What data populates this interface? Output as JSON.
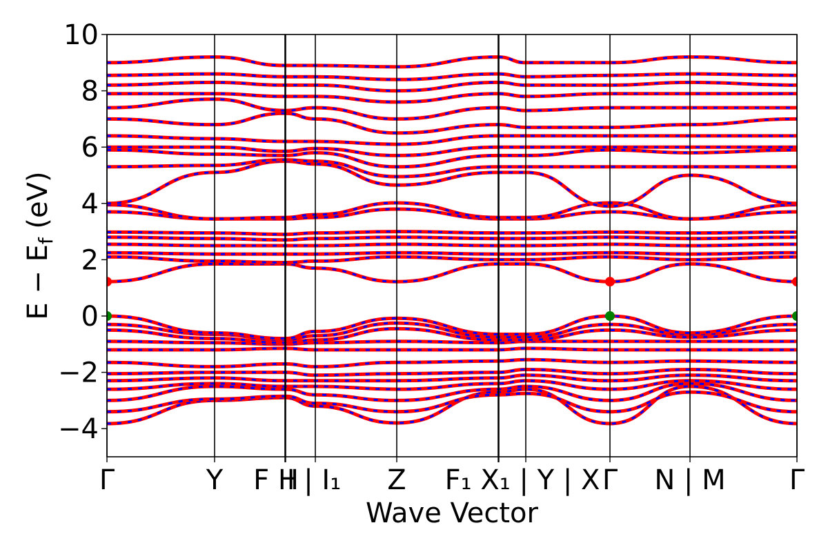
{
  "chart_data": {
    "type": "line",
    "title": "",
    "xlabel": "Wave Vector",
    "ylabel": "E − E_f (eV)",
    "ylabel_parts": {
      "main": "E − E",
      "sub": "f",
      "unit": " (eV)"
    },
    "ylim": [
      -5,
      10
    ],
    "yticks": [
      -4,
      -2,
      0,
      2,
      4,
      6,
      8,
      10
    ],
    "ytick_labels": [
      "−4",
      "−2",
      "0",
      "2",
      "4",
      "6",
      "8",
      "10"
    ],
    "xlim": [
      0,
      1
    ],
    "high_symmetry_points": [
      {
        "x": 0.0,
        "label": "Γ"
      },
      {
        "x": 0.156,
        "label": "Y"
      },
      {
        "x": 0.258,
        "label": "F"
      },
      {
        "x": 0.259,
        "label": "H"
      },
      {
        "x": 0.302,
        "label": "I | I₁"
      },
      {
        "x": 0.42,
        "label": "Z"
      },
      {
        "x": 0.567,
        "label": "F₁"
      },
      {
        "x": 0.568,
        "label": "X₁"
      },
      {
        "x": 0.607,
        "label": "Y | X"
      },
      {
        "x": 0.729,
        "label": "Γ"
      },
      {
        "x": 0.845,
        "label": "N | M"
      },
      {
        "x": 1.0,
        "label": "Γ"
      }
    ],
    "tick_label_text": [
      "Γ",
      "Y",
      "F H",
      "I | I₁",
      "Z",
      "F₁ X₁ | Y | X",
      "Γ",
      "N | M",
      "Γ"
    ],
    "series": [
      {
        "color": "#ff0000",
        "style": "solid"
      },
      {
        "color": "#0000ff",
        "style": "dashed"
      }
    ],
    "bands": [
      [
        [
          0,
          -3.82
        ],
        [
          0.156,
          -3.0
        ],
        [
          0.258,
          -2.9
        ],
        [
          0.302,
          -3.2
        ],
        [
          0.42,
          -3.8
        ],
        [
          0.567,
          -2.7
        ],
        [
          0.607,
          -2.6
        ],
        [
          0.729,
          -3.82
        ],
        [
          0.845,
          -2.5
        ],
        [
          1.0,
          -3.82
        ]
      ],
      [
        [
          0,
          -3.4
        ],
        [
          0.156,
          -2.95
        ],
        [
          0.258,
          -2.85
        ],
        [
          0.302,
          -3.1
        ],
        [
          0.42,
          -3.4
        ],
        [
          0.567,
          -2.8
        ],
        [
          0.607,
          -2.75
        ],
        [
          0.729,
          -3.4
        ],
        [
          0.845,
          -2.7
        ],
        [
          1.0,
          -3.4
        ]
      ],
      [
        [
          0,
          -3.0
        ],
        [
          0.156,
          -2.5
        ],
        [
          0.258,
          -2.6
        ],
        [
          0.302,
          -2.8
        ],
        [
          0.42,
          -3.0
        ],
        [
          0.567,
          -2.6
        ],
        [
          0.607,
          -2.5
        ],
        [
          0.729,
          -3.0
        ],
        [
          0.845,
          -2.4
        ],
        [
          1.0,
          -3.0
        ]
      ],
      [
        [
          0,
          -2.6
        ],
        [
          0.156,
          -2.4
        ],
        [
          0.258,
          -2.5
        ],
        [
          0.302,
          -2.5
        ],
        [
          0.42,
          -2.6
        ],
        [
          0.567,
          -2.4
        ],
        [
          0.607,
          -2.3
        ],
        [
          0.729,
          -2.6
        ],
        [
          0.845,
          -2.3
        ],
        [
          1.0,
          -2.6
        ]
      ],
      [
        [
          0,
          -2.3
        ],
        [
          0.156,
          -2.2
        ],
        [
          0.258,
          -2.3
        ],
        [
          0.302,
          -2.3
        ],
        [
          0.42,
          -2.3
        ],
        [
          0.567,
          -2.2
        ],
        [
          0.607,
          -2.1
        ],
        [
          0.729,
          -2.3
        ],
        [
          0.845,
          -2.1
        ],
        [
          1.0,
          -2.3
        ]
      ],
      [
        [
          0,
          -2.05
        ],
        [
          0.156,
          -2.0
        ],
        [
          0.258,
          -2.0
        ],
        [
          0.302,
          -2.1
        ],
        [
          0.42,
          -2.05
        ],
        [
          0.567,
          -2.0
        ],
        [
          0.607,
          -1.9
        ],
        [
          0.729,
          -2.05
        ],
        [
          0.845,
          -1.9
        ],
        [
          1.0,
          -2.05
        ]
      ],
      [
        [
          0,
          -1.65
        ],
        [
          0.156,
          -1.8
        ],
        [
          0.258,
          -1.7
        ],
        [
          0.302,
          -1.8
        ],
        [
          0.42,
          -1.65
        ],
        [
          0.567,
          -1.6
        ],
        [
          0.607,
          -1.55
        ],
        [
          0.729,
          -1.65
        ],
        [
          0.845,
          -1.6
        ],
        [
          1.0,
          -1.65
        ]
      ],
      [
        [
          0,
          -1.2
        ],
        [
          0.156,
          -1.2
        ],
        [
          0.258,
          -1.15
        ],
        [
          0.302,
          -1.2
        ],
        [
          0.42,
          -1.2
        ],
        [
          0.567,
          -1.2
        ],
        [
          0.607,
          -1.15
        ],
        [
          0.729,
          -1.2
        ],
        [
          0.845,
          -1.2
        ],
        [
          1.0,
          -1.2
        ]
      ],
      [
        [
          0,
          -0.9
        ],
        [
          0.156,
          -0.95
        ],
        [
          0.258,
          -1.0
        ],
        [
          0.302,
          -0.95
        ],
        [
          0.42,
          -0.9
        ],
        [
          0.567,
          -0.95
        ],
        [
          0.607,
          -0.9
        ],
        [
          0.729,
          -0.9
        ],
        [
          0.845,
          -0.9
        ],
        [
          1.0,
          -0.9
        ]
      ],
      [
        [
          0,
          -0.5
        ],
        [
          0.156,
          -0.8
        ],
        [
          0.258,
          -0.95
        ],
        [
          0.302,
          -0.85
        ],
        [
          0.42,
          -0.45
        ],
        [
          0.567,
          -0.85
        ],
        [
          0.607,
          -0.85
        ],
        [
          0.729,
          -0.5
        ],
        [
          0.845,
          -0.75
        ],
        [
          1.0,
          -0.5
        ]
      ],
      [
        [
          0,
          -0.3
        ],
        [
          0.156,
          -0.65
        ],
        [
          0.258,
          -0.85
        ],
        [
          0.302,
          -0.7
        ],
        [
          0.42,
          -0.25
        ],
        [
          0.567,
          -0.75
        ],
        [
          0.607,
          -0.75
        ],
        [
          0.729,
          -0.3
        ],
        [
          0.845,
          -0.65
        ],
        [
          1.0,
          -0.3
        ]
      ],
      [
        [
          0,
          0.0
        ],
        [
          0.156,
          -0.6
        ],
        [
          0.258,
          -0.8
        ],
        [
          0.302,
          -0.55
        ],
        [
          0.42,
          -0.08
        ],
        [
          0.567,
          -0.65
        ],
        [
          0.607,
          -0.65
        ],
        [
          0.729,
          0.0
        ],
        [
          0.845,
          -0.6
        ],
        [
          1.0,
          0.0
        ]
      ],
      [
        [
          0,
          1.22
        ],
        [
          0.156,
          1.85
        ],
        [
          0.258,
          1.85
        ],
        [
          0.302,
          1.7
        ],
        [
          0.42,
          1.22
        ],
        [
          0.567,
          1.85
        ],
        [
          0.607,
          1.85
        ],
        [
          0.729,
          1.22
        ],
        [
          0.845,
          1.85
        ],
        [
          1.0,
          1.22
        ]
      ],
      [
        [
          0,
          2.1
        ],
        [
          0.156,
          1.95
        ],
        [
          0.258,
          1.9
        ],
        [
          0.302,
          1.95
        ],
        [
          0.42,
          2.1
        ],
        [
          0.567,
          2.0
        ],
        [
          0.607,
          2.0
        ],
        [
          0.729,
          2.1
        ],
        [
          0.845,
          2.0
        ],
        [
          1.0,
          2.1
        ]
      ],
      [
        [
          0,
          2.25
        ],
        [
          0.156,
          2.2
        ],
        [
          0.258,
          2.2
        ],
        [
          0.302,
          2.2
        ],
        [
          0.42,
          2.25
        ],
        [
          0.567,
          2.2
        ],
        [
          0.607,
          2.2
        ],
        [
          0.729,
          2.25
        ],
        [
          0.845,
          2.2
        ],
        [
          1.0,
          2.25
        ]
      ],
      [
        [
          0,
          2.55
        ],
        [
          0.156,
          2.5
        ],
        [
          0.258,
          2.5
        ],
        [
          0.302,
          2.5
        ],
        [
          0.42,
          2.55
        ],
        [
          0.567,
          2.5
        ],
        [
          0.607,
          2.5
        ],
        [
          0.729,
          2.55
        ],
        [
          0.845,
          2.5
        ],
        [
          1.0,
          2.55
        ]
      ],
      [
        [
          0,
          2.8
        ],
        [
          0.156,
          2.75
        ],
        [
          0.258,
          2.7
        ],
        [
          0.302,
          2.75
        ],
        [
          0.42,
          2.8
        ],
        [
          0.567,
          2.75
        ],
        [
          0.607,
          2.75
        ],
        [
          0.729,
          2.8
        ],
        [
          0.845,
          2.75
        ],
        [
          1.0,
          2.8
        ]
      ],
      [
        [
          0,
          2.98
        ],
        [
          0.156,
          2.95
        ],
        [
          0.258,
          2.9
        ],
        [
          0.302,
          2.95
        ],
        [
          0.42,
          3.0
        ],
        [
          0.567,
          2.95
        ],
        [
          0.607,
          2.95
        ],
        [
          0.729,
          2.98
        ],
        [
          0.845,
          2.95
        ],
        [
          1.0,
          2.98
        ]
      ],
      [
        [
          0,
          3.7
        ],
        [
          0.156,
          3.45
        ],
        [
          0.258,
          3.45
        ],
        [
          0.302,
          3.5
        ],
        [
          0.42,
          3.8
        ],
        [
          0.567,
          3.45
        ],
        [
          0.607,
          3.45
        ],
        [
          0.729,
          3.7
        ],
        [
          0.845,
          3.45
        ],
        [
          1.0,
          3.7
        ]
      ],
      [
        [
          0,
          3.95
        ],
        [
          0.156,
          3.45
        ],
        [
          0.258,
          3.5
        ],
        [
          0.302,
          3.6
        ],
        [
          0.42,
          4.02
        ],
        [
          0.567,
          3.5
        ],
        [
          0.607,
          3.5
        ],
        [
          0.729,
          4.02
        ],
        [
          0.845,
          3.45
        ],
        [
          1.0,
          3.95
        ]
      ],
      [
        [
          0,
          4.0
        ],
        [
          0.156,
          5.1
        ],
        [
          0.258,
          5.5
        ],
        [
          0.302,
          5.4
        ],
        [
          0.42,
          4.65
        ],
        [
          0.567,
          5.1
        ],
        [
          0.607,
          5.1
        ],
        [
          0.729,
          3.9
        ],
        [
          0.845,
          5.0
        ],
        [
          1.0,
          4.0
        ]
      ],
      [
        [
          0,
          5.3
        ],
        [
          0.156,
          5.35
        ],
        [
          0.258,
          5.55
        ],
        [
          0.302,
          5.5
        ],
        [
          0.42,
          4.95
        ],
        [
          0.567,
          5.3
        ],
        [
          0.607,
          5.3
        ],
        [
          0.729,
          5.3
        ],
        [
          0.845,
          5.3
        ],
        [
          1.0,
          5.3
        ]
      ],
      [
        [
          0,
          5.9
        ],
        [
          0.156,
          5.75
        ],
        [
          0.258,
          5.7
        ],
        [
          0.302,
          5.8
        ],
        [
          0.42,
          5.3
        ],
        [
          0.567,
          5.7
        ],
        [
          0.607,
          5.7
        ],
        [
          0.729,
          5.9
        ],
        [
          0.845,
          5.8
        ],
        [
          1.0,
          5.9
        ]
      ],
      [
        [
          0,
          6.0
        ],
        [
          0.156,
          6.0
        ],
        [
          0.258,
          5.85
        ],
        [
          0.302,
          5.95
        ],
        [
          0.42,
          5.7
        ],
        [
          0.567,
          6.0
        ],
        [
          0.607,
          6.0
        ],
        [
          0.729,
          6.0
        ],
        [
          0.845,
          6.0
        ],
        [
          1.0,
          6.0
        ]
      ],
      [
        [
          0,
          6.4
        ],
        [
          0.156,
          6.3
        ],
        [
          0.258,
          6.2
        ],
        [
          0.302,
          6.2
        ],
        [
          0.42,
          6.1
        ],
        [
          0.567,
          6.4
        ],
        [
          0.607,
          6.4
        ],
        [
          0.729,
          6.4
        ],
        [
          0.845,
          6.4
        ],
        [
          1.0,
          6.4
        ]
      ],
      [
        [
          0,
          7.0
        ],
        [
          0.156,
          6.8
        ],
        [
          0.258,
          7.2
        ],
        [
          0.302,
          7.0
        ],
        [
          0.42,
          6.5
        ],
        [
          0.567,
          6.8
        ],
        [
          0.607,
          6.7
        ],
        [
          0.729,
          6.7
        ],
        [
          0.845,
          6.8
        ],
        [
          1.0,
          7.0
        ]
      ],
      [
        [
          0,
          7.4
        ],
        [
          0.156,
          7.7
        ],
        [
          0.258,
          7.3
        ],
        [
          0.302,
          7.4
        ],
        [
          0.42,
          7.0
        ],
        [
          0.567,
          7.4
        ],
        [
          0.607,
          7.3
        ],
        [
          0.729,
          7.4
        ],
        [
          0.845,
          7.4
        ],
        [
          1.0,
          7.4
        ]
      ],
      [
        [
          0,
          7.9
        ],
        [
          0.156,
          7.9
        ],
        [
          0.258,
          7.8
        ],
        [
          0.302,
          7.8
        ],
        [
          0.42,
          7.6
        ],
        [
          0.567,
          7.9
        ],
        [
          0.607,
          7.8
        ],
        [
          0.729,
          7.9
        ],
        [
          0.845,
          7.9
        ],
        [
          1.0,
          7.9
        ]
      ],
      [
        [
          0,
          8.2
        ],
        [
          0.156,
          8.3
        ],
        [
          0.258,
          8.2
        ],
        [
          0.302,
          8.2
        ],
        [
          0.42,
          8.0
        ],
        [
          0.567,
          8.3
        ],
        [
          0.607,
          8.2
        ],
        [
          0.729,
          8.2
        ],
        [
          0.845,
          8.3
        ],
        [
          1.0,
          8.2
        ]
      ],
      [
        [
          0,
          8.55
        ],
        [
          0.156,
          8.6
        ],
        [
          0.258,
          8.5
        ],
        [
          0.302,
          8.5
        ],
        [
          0.42,
          8.4
        ],
        [
          0.567,
          8.6
        ],
        [
          0.607,
          8.5
        ],
        [
          0.729,
          8.55
        ],
        [
          0.845,
          8.6
        ],
        [
          1.0,
          8.55
        ]
      ],
      [
        [
          0,
          9.0
        ],
        [
          0.156,
          9.2
        ],
        [
          0.258,
          8.9
        ],
        [
          0.302,
          8.9
        ],
        [
          0.42,
          8.85
        ],
        [
          0.567,
          9.2
        ],
        [
          0.607,
          9.0
        ],
        [
          0.729,
          9.0
        ],
        [
          0.845,
          9.2
        ],
        [
          1.0,
          9.0
        ]
      ]
    ],
    "markers": [
      {
        "x": 0.0,
        "y": 1.22,
        "color": "#ff0000"
      },
      {
        "x": 0.729,
        "y": 1.22,
        "color": "#ff0000"
      },
      {
        "x": 1.0,
        "y": 1.22,
        "color": "#ff0000"
      },
      {
        "x": 0.0,
        "y": 0.0,
        "color": "#008000"
      },
      {
        "x": 0.729,
        "y": 0.0,
        "color": "#008000"
      },
      {
        "x": 1.0,
        "y": 0.0,
        "color": "#008000"
      }
    ],
    "grid": false
  }
}
